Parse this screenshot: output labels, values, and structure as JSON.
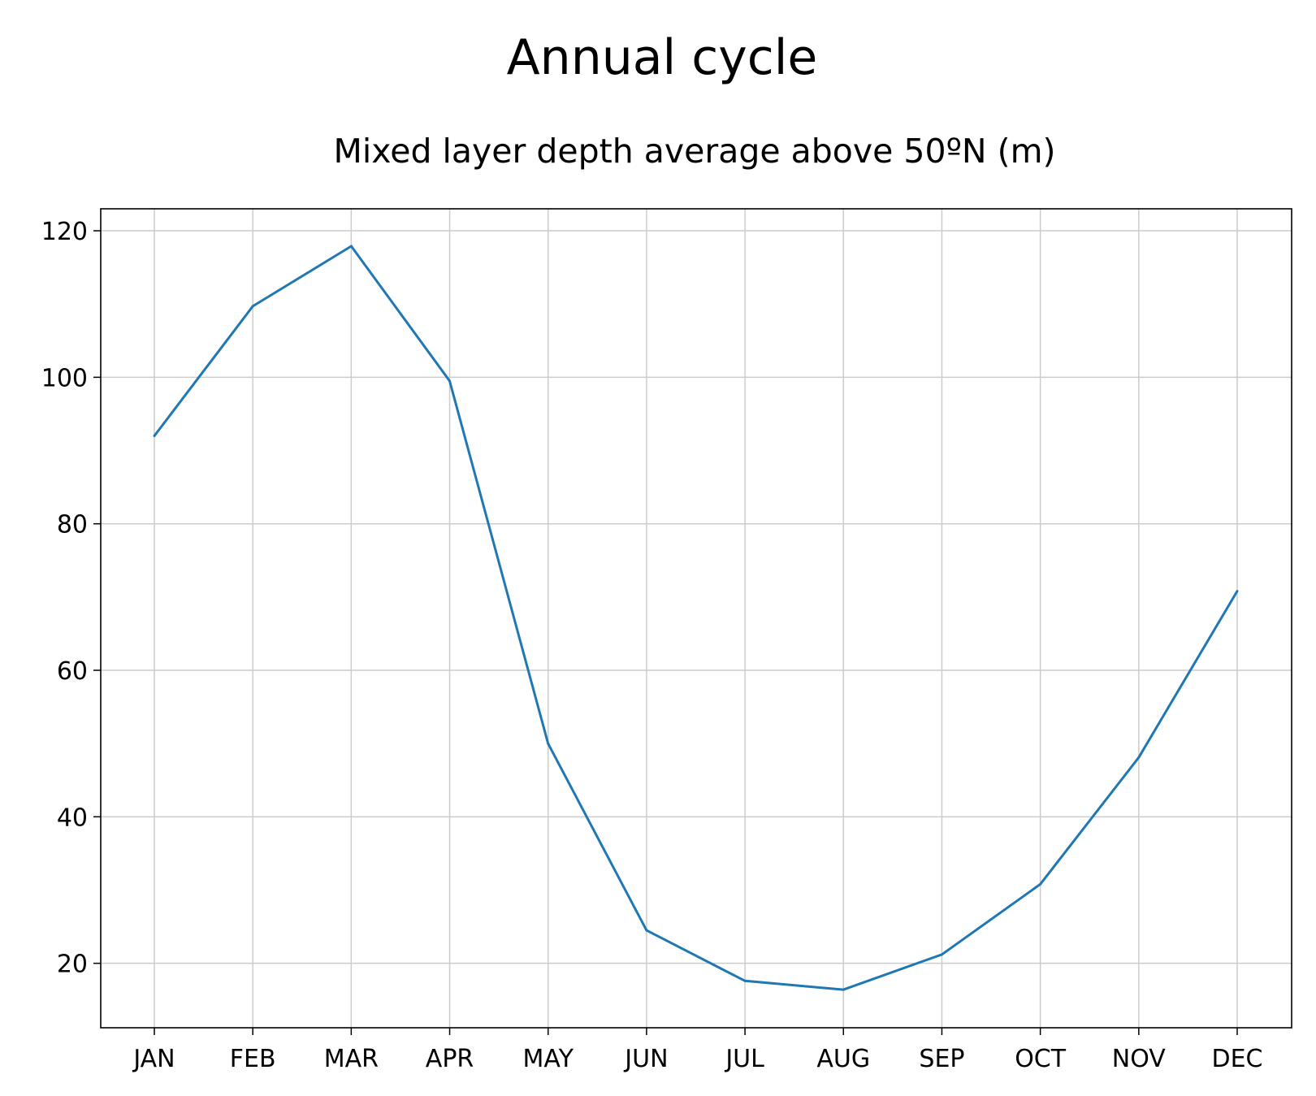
{
  "chart_data": {
    "type": "line",
    "title": "Annual cycle",
    "subtitle": "Mixed layer depth average above 50ºN (m)",
    "xlabel": "",
    "ylabel": "",
    "categories": [
      "JAN",
      "FEB",
      "MAR",
      "APR",
      "MAY",
      "JUN",
      "JUL",
      "AUG",
      "SEP",
      "OCT",
      "NOV",
      "DEC"
    ],
    "yticks": [
      20,
      40,
      60,
      80,
      100,
      120
    ],
    "ylim": [
      11.2,
      123.0
    ],
    "grid": true,
    "series": [
      {
        "color": "#1f77b4",
        "values": [
          92.0,
          109.7,
          117.9,
          99.5,
          50.0,
          24.5,
          17.6,
          16.4,
          21.2,
          30.8,
          48.1,
          70.8
        ]
      }
    ]
  }
}
